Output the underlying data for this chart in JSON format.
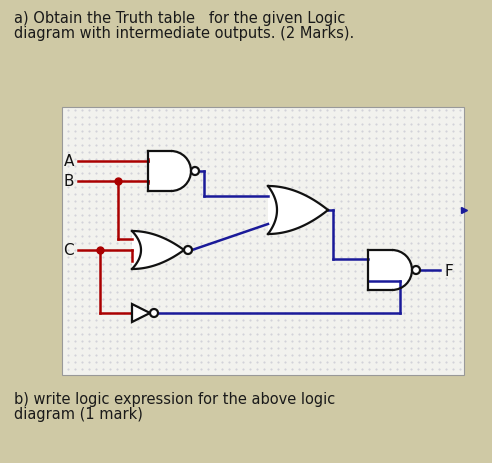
{
  "title_line1": "a) Obtain the Truth table   for the given Logic",
  "title_line2": "diagram with intermediate outputs. (2 Marks).",
  "bottom_line1": "b) write logic expression for the above logic",
  "bottom_line2": "diagram (1 mark)",
  "bg_color": "#cfc9a5",
  "diagram_bg": "#f2f2ee",
  "dot_color": "#c0c0cc",
  "red": "#aa0000",
  "blue": "#1a1a99",
  "black": "#111111",
  "label_A": "A",
  "label_B": "B",
  "label_C": "C",
  "label_F": "F",
  "fig_w": 4.92,
  "fig_h": 4.64,
  "dpi": 100
}
